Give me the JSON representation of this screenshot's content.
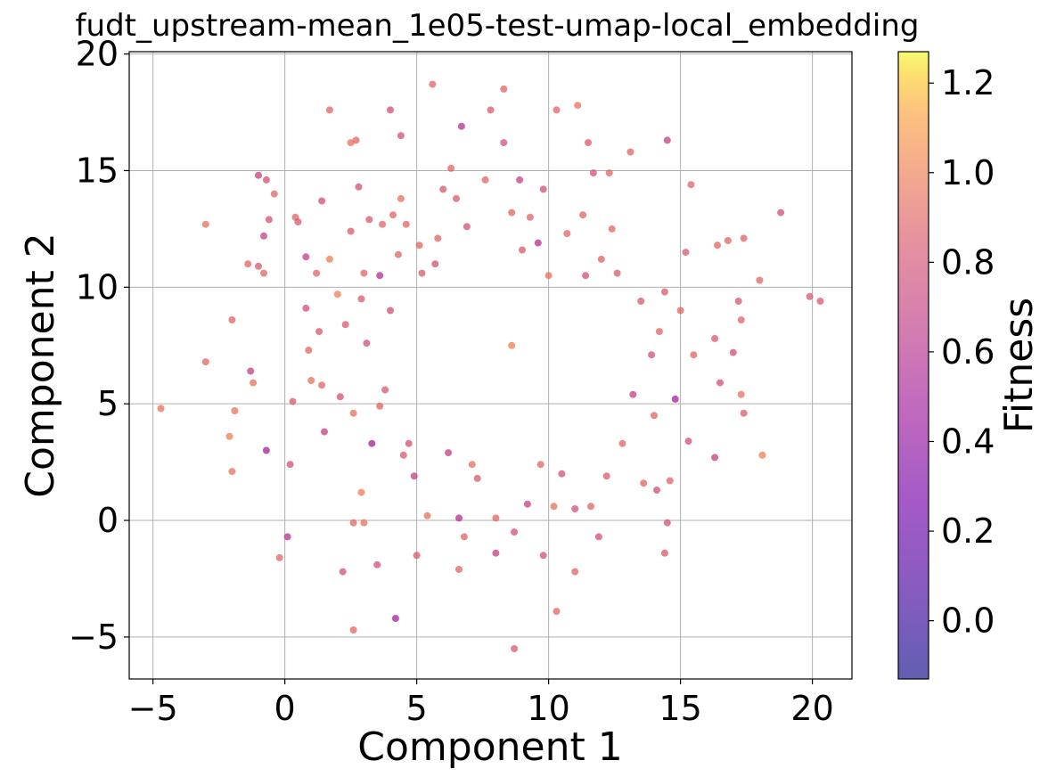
{
  "chart_data": {
    "type": "scatter",
    "title": "fudt_upstream-mean_1e05-test-umap-local_embedding",
    "xlabel": "Component 1",
    "ylabel": "Component 2",
    "xlim": [
      -5.9,
      21.5
    ],
    "ylim": [
      -6.8,
      20.1
    ],
    "xticks": [
      -5,
      0,
      5,
      10,
      15,
      20
    ],
    "yticks": [
      -5,
      0,
      5,
      10,
      15,
      20
    ],
    "grid": true,
    "colormap": "plasma",
    "alpha": 0.75,
    "colorbar": {
      "label": "Fitness",
      "range": [
        -0.13,
        1.27
      ],
      "ticks": [
        0.0,
        0.2,
        0.4,
        0.6,
        0.8,
        1.0,
        1.2
      ]
    },
    "points": [
      [
        -4.7,
        4.8,
        0.95
      ],
      [
        -3.0,
        12.7,
        0.95
      ],
      [
        -3.0,
        6.8,
        0.9
      ],
      [
        -2.1,
        3.6,
        1.0
      ],
      [
        -2.0,
        2.1,
        0.95
      ],
      [
        -2.0,
        8.6,
        0.9
      ],
      [
        -1.9,
        4.7,
        0.95
      ],
      [
        -1.4,
        11.0,
        0.9
      ],
      [
        -1.3,
        6.4,
        0.7
      ],
      [
        -1.2,
        5.9,
        0.95
      ],
      [
        -1.0,
        10.9,
        0.85
      ],
      [
        -1.0,
        14.8,
        0.7
      ],
      [
        -0.8,
        12.2,
        0.7
      ],
      [
        -0.7,
        14.6,
        0.8
      ],
      [
        -0.7,
        3.0,
        0.5
      ],
      [
        -0.8,
        10.6,
        0.9
      ],
      [
        -0.6,
        12.9,
        0.8
      ],
      [
        -0.4,
        14.0,
        0.9
      ],
      [
        -0.2,
        -1.6,
        0.9
      ],
      [
        0.1,
        -0.7,
        0.6
      ],
      [
        0.2,
        2.4,
        0.8
      ],
      [
        0.3,
        5.1,
        0.85
      ],
      [
        0.4,
        13.0,
        0.9
      ],
      [
        0.5,
        12.8,
        0.85
      ],
      [
        0.8,
        9.1,
        0.8
      ],
      [
        0.8,
        11.3,
        0.7
      ],
      [
        0.9,
        7.3,
        0.9
      ],
      [
        1.0,
        6.0,
        0.95
      ],
      [
        1.2,
        10.6,
        0.9
      ],
      [
        1.3,
        8.1,
        0.85
      ],
      [
        1.4,
        13.7,
        0.8
      ],
      [
        1.4,
        5.8,
        0.9
      ],
      [
        1.5,
        3.8,
        0.7
      ],
      [
        1.7,
        17.6,
        0.9
      ],
      [
        1.7,
        11.2,
        1.0
      ],
      [
        2.0,
        9.7,
        1.0
      ],
      [
        2.1,
        5.3,
        0.8
      ],
      [
        2.2,
        -2.2,
        0.8
      ],
      [
        2.3,
        8.4,
        0.85
      ],
      [
        2.5,
        16.2,
        0.95
      ],
      [
        2.5,
        12.4,
        0.85
      ],
      [
        2.6,
        -4.7,
        0.9
      ],
      [
        2.6,
        4.6,
        0.95
      ],
      [
        2.6,
        -0.1,
        0.9
      ],
      [
        2.7,
        16.3,
        0.9
      ],
      [
        2.8,
        14.3,
        0.8
      ],
      [
        2.9,
        1.2,
        1.0
      ],
      [
        2.9,
        9.5,
        0.85
      ],
      [
        3.0,
        10.6,
        0.9
      ],
      [
        3.0,
        -0.1,
        0.95
      ],
      [
        3.1,
        7.6,
        0.8
      ],
      [
        3.2,
        12.9,
        0.85
      ],
      [
        3.3,
        3.3,
        0.5
      ],
      [
        3.5,
        -1.9,
        0.8
      ],
      [
        3.6,
        4.9,
        0.9
      ],
      [
        3.6,
        10.5,
        0.6
      ],
      [
        3.7,
        12.7,
        0.9
      ],
      [
        3.8,
        5.6,
        0.85
      ],
      [
        4.0,
        17.6,
        0.8
      ],
      [
        4.0,
        9.0,
        0.8
      ],
      [
        4.1,
        13.1,
        0.9
      ],
      [
        4.2,
        -4.2,
        0.5
      ],
      [
        4.3,
        11.4,
        0.9
      ],
      [
        4.4,
        16.5,
        0.8
      ],
      [
        4.4,
        13.8,
        0.95
      ],
      [
        4.5,
        2.8,
        0.85
      ],
      [
        4.6,
        12.7,
        0.9
      ],
      [
        4.7,
        3.3,
        0.8
      ],
      [
        4.9,
        1.9,
        0.7
      ],
      [
        5.0,
        -1.5,
        0.85
      ],
      [
        5.1,
        11.8,
        0.9
      ],
      [
        5.2,
        10.6,
        0.85
      ],
      [
        5.4,
        0.2,
        0.95
      ],
      [
        5.6,
        18.7,
        0.9
      ],
      [
        5.7,
        11.0,
        0.8
      ],
      [
        5.8,
        12.1,
        0.9
      ],
      [
        6.0,
        14.2,
        0.85
      ],
      [
        6.2,
        2.9,
        0.7
      ],
      [
        6.3,
        15.1,
        0.9
      ],
      [
        6.5,
        13.8,
        0.85
      ],
      [
        6.6,
        -2.1,
        0.9
      ],
      [
        6.6,
        0.1,
        0.6
      ],
      [
        6.7,
        16.9,
        0.6
      ],
      [
        6.8,
        -0.7,
        0.9
      ],
      [
        6.9,
        12.6,
        0.8
      ],
      [
        7.1,
        2.4,
        0.95
      ],
      [
        7.3,
        1.8,
        0.85
      ],
      [
        7.6,
        14.6,
        0.9
      ],
      [
        7.8,
        17.6,
        0.85
      ],
      [
        8.0,
        0.1,
        0.9
      ],
      [
        8.0,
        -1.4,
        0.7
      ],
      [
        8.3,
        18.5,
        0.9
      ],
      [
        8.3,
        16.2,
        0.8
      ],
      [
        8.6,
        13.2,
        0.9
      ],
      [
        8.6,
        7.5,
        1.0
      ],
      [
        8.7,
        -0.5,
        0.8
      ],
      [
        8.7,
        -5.5,
        0.85
      ],
      [
        8.9,
        14.6,
        0.7
      ],
      [
        9.0,
        11.6,
        0.85
      ],
      [
        9.2,
        0.7,
        0.7
      ],
      [
        9.3,
        13.0,
        0.9
      ],
      [
        9.6,
        11.9,
        0.6
      ],
      [
        9.7,
        2.4,
        0.9
      ],
      [
        9.8,
        -1.5,
        0.8
      ],
      [
        9.8,
        14.2,
        0.8
      ],
      [
        10.0,
        10.5,
        0.95
      ],
      [
        10.2,
        0.6,
        0.95
      ],
      [
        10.3,
        17.6,
        0.9
      ],
      [
        10.3,
        -3.9,
        0.9
      ],
      [
        10.5,
        2.0,
        0.8
      ],
      [
        10.7,
        12.3,
        0.9
      ],
      [
        11.0,
        0.5,
        0.8
      ],
      [
        11.0,
        -2.2,
        0.9
      ],
      [
        11.1,
        17.8,
        0.95
      ],
      [
        11.3,
        13.1,
        0.9
      ],
      [
        11.4,
        10.5,
        0.8
      ],
      [
        11.5,
        16.2,
        0.85
      ],
      [
        11.6,
        0.6,
        0.9
      ],
      [
        11.7,
        14.9,
        0.8
      ],
      [
        11.9,
        -0.7,
        0.8
      ],
      [
        12.0,
        11.2,
        0.9
      ],
      [
        12.2,
        1.9,
        0.85
      ],
      [
        12.3,
        14.9,
        0.9
      ],
      [
        12.4,
        12.5,
        0.9
      ],
      [
        12.6,
        10.6,
        0.85
      ],
      [
        12.8,
        3.3,
        0.9
      ],
      [
        13.1,
        15.8,
        0.9
      ],
      [
        13.2,
        5.4,
        0.7
      ],
      [
        13.5,
        9.4,
        0.85
      ],
      [
        13.6,
        1.6,
        0.9
      ],
      [
        13.9,
        7.1,
        0.8
      ],
      [
        14.0,
        4.5,
        0.9
      ],
      [
        14.1,
        1.3,
        0.8
      ],
      [
        14.2,
        8.1,
        0.9
      ],
      [
        14.4,
        9.8,
        0.85
      ],
      [
        14.4,
        -1.4,
        0.85
      ],
      [
        14.5,
        -0.1,
        0.8
      ],
      [
        14.5,
        16.3,
        0.7
      ],
      [
        14.6,
        1.7,
        0.9
      ],
      [
        14.8,
        5.2,
        0.5
      ],
      [
        15.0,
        9.0,
        0.9
      ],
      [
        15.2,
        11.5,
        0.85
      ],
      [
        15.3,
        3.4,
        0.8
      ],
      [
        15.4,
        14.4,
        0.9
      ],
      [
        15.5,
        7.1,
        0.9
      ],
      [
        16.3,
        7.8,
        0.85
      ],
      [
        16.3,
        2.7,
        0.7
      ],
      [
        16.4,
        11.8,
        0.9
      ],
      [
        16.5,
        5.9,
        0.8
      ],
      [
        16.8,
        12.0,
        0.9
      ],
      [
        17.0,
        7.2,
        0.8
      ],
      [
        17.2,
        9.4,
        0.85
      ],
      [
        17.3,
        8.6,
        0.9
      ],
      [
        17.3,
        5.4,
        0.95
      ],
      [
        17.4,
        12.1,
        0.9
      ],
      [
        17.4,
        4.6,
        0.85
      ],
      [
        18.1,
        2.8,
        1.0
      ],
      [
        18.0,
        10.3,
        0.9
      ],
      [
        18.8,
        13.2,
        0.8
      ],
      [
        19.9,
        9.6,
        0.85
      ],
      [
        20.3,
        9.4,
        0.85
      ]
    ]
  }
}
